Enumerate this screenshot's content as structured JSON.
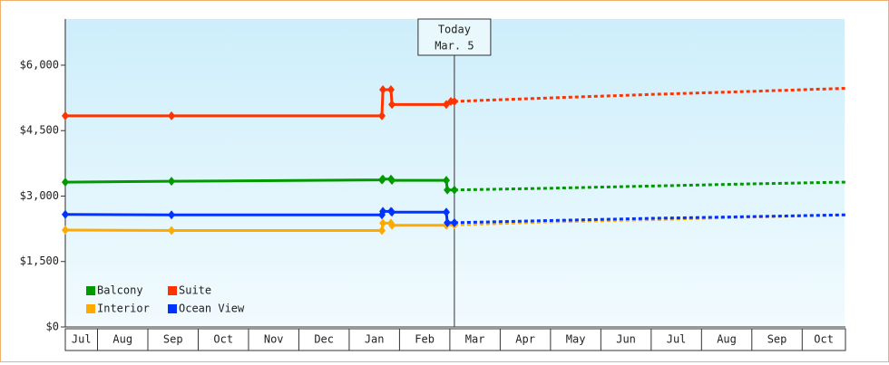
{
  "chart_data": {
    "type": "line",
    "categories": [
      "Jul",
      "Aug",
      "Sep",
      "Oct",
      "Nov",
      "Dec",
      "Jan",
      "Feb",
      "Mar",
      "Apr",
      "May",
      "Jun",
      "Jul",
      "Aug",
      "Sep",
      "Oct"
    ],
    "xlim": [
      0.36,
      15.86
    ],
    "ylim": [
      0,
      7000
    ],
    "yticks": [
      {
        "value": 0,
        "label": "$0"
      },
      {
        "value": 1500,
        "label": "$1,500"
      },
      {
        "value": 3000,
        "label": "$3,000"
      },
      {
        "value": 4500,
        "label": "$4,500"
      },
      {
        "value": 6000,
        "label": "$6,000"
      }
    ],
    "grid": false,
    "legend": "bottom-left",
    "annotation": {
      "x": 8.09,
      "title": "Today",
      "date": "Mar. 5"
    },
    "series": [
      {
        "name": "Balcony",
        "color": "#009900",
        "x": [
          0.36,
          2.47,
          6.65,
          6.67,
          6.83,
          6.85,
          7.93,
          7.95,
          8.09
        ],
        "values": [
          3320,
          3340,
          3370,
          3390,
          3390,
          3360,
          3360,
          3140,
          3140
        ],
        "forecast_x": [
          8.09,
          10,
          12,
          14,
          15.86
        ],
        "forecast_values": [
          3140,
          3180,
          3230,
          3280,
          3320
        ]
      },
      {
        "name": "Suite",
        "color": "#ff3300",
        "x": [
          0.36,
          2.47,
          6.65,
          6.67,
          6.83,
          6.85,
          7.93,
          8.02,
          8.09
        ],
        "values": [
          4840,
          4840,
          4840,
          5440,
          5440,
          5100,
          5100,
          5170,
          5170
        ],
        "forecast_x": [
          8.09,
          10,
          12,
          14,
          15.86
        ],
        "forecast_values": [
          5170,
          5250,
          5330,
          5400,
          5470
        ]
      },
      {
        "name": "Interior",
        "color": "#ffaa00",
        "x": [
          0.36,
          2.47,
          6.65,
          6.67,
          6.83,
          6.85,
          7.93,
          8.09
        ],
        "values": [
          2220,
          2210,
          2210,
          2380,
          2380,
          2330,
          2330,
          2340
        ],
        "forecast_x": [
          8.09,
          10,
          12,
          14,
          15.86
        ],
        "forecast_values": [
          2340,
          2410,
          2460,
          2520,
          2570
        ]
      },
      {
        "name": "Ocean View",
        "color": "#0033ff",
        "x": [
          0.36,
          2.47,
          6.65,
          6.67,
          6.83,
          6.85,
          7.93,
          7.95,
          8.09
        ],
        "values": [
          2580,
          2570,
          2570,
          2650,
          2650,
          2630,
          2630,
          2390,
          2390
        ],
        "forecast_x": [
          8.09,
          10,
          12,
          14,
          15.86
        ],
        "forecast_values": [
          2390,
          2440,
          2490,
          2530,
          2570
        ]
      }
    ]
  }
}
